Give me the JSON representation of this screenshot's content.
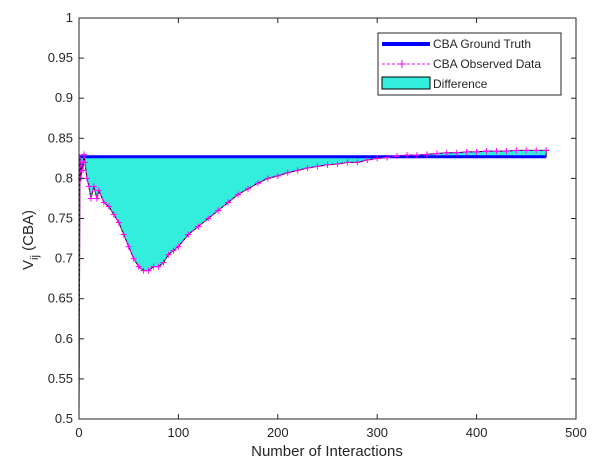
{
  "chart_data": {
    "type": "area",
    "xlabel": "Number of Interactions",
    "ylabel_main": "V",
    "ylabel_sub": "ij",
    "ylabel_suffix": " (CBA)",
    "xlim": [
      0,
      500
    ],
    "ylim": [
      0.5,
      1
    ],
    "x_ticks": [
      0,
      100,
      200,
      300,
      400,
      500
    ],
    "y_ticks": [
      0.5,
      0.55,
      0.6,
      0.65,
      0.7,
      0.75,
      0.8,
      0.85,
      0.9,
      0.95,
      1
    ],
    "x_tick_labels": [
      "0",
      "100",
      "200",
      "300",
      "400",
      "500"
    ],
    "y_tick_labels": [
      "0.5",
      "0.55",
      "0.6",
      "0.65",
      "0.7",
      "0.75",
      "0.8",
      "0.85",
      "0.9",
      "0.95",
      "1"
    ],
    "grid": false,
    "legend_position": "top-right",
    "series": [
      {
        "name": "CBA Ground Truth",
        "style": "solid-thick",
        "color": "#0000ff",
        "x": [
          0,
          470
        ],
        "y": [
          0.827,
          0.827
        ]
      },
      {
        "name": "CBA Observed Data",
        "style": "dashed-plus",
        "color": "#ff00ff",
        "x": [
          0,
          1,
          2,
          3,
          4,
          5,
          6,
          8,
          10,
          12,
          15,
          18,
          20,
          25,
          30,
          35,
          40,
          45,
          50,
          55,
          60,
          65,
          70,
          75,
          80,
          85,
          90,
          95,
          100,
          110,
          120,
          130,
          140,
          150,
          160,
          170,
          180,
          190,
          200,
          210,
          220,
          230,
          240,
          250,
          260,
          270,
          280,
          290,
          300,
          310,
          320,
          330,
          340,
          350,
          360,
          370,
          380,
          390,
          400,
          410,
          420,
          430,
          440,
          450,
          460,
          470
        ],
        "y": [
          0.5,
          0.83,
          0.8,
          0.82,
          0.81,
          0.83,
          0.82,
          0.8,
          0.79,
          0.775,
          0.79,
          0.775,
          0.785,
          0.77,
          0.765,
          0.755,
          0.745,
          0.73,
          0.715,
          0.7,
          0.69,
          0.685,
          0.685,
          0.69,
          0.69,
          0.695,
          0.705,
          0.71,
          0.715,
          0.73,
          0.74,
          0.75,
          0.76,
          0.77,
          0.78,
          0.787,
          0.794,
          0.8,
          0.803,
          0.807,
          0.81,
          0.813,
          0.815,
          0.817,
          0.818,
          0.82,
          0.82,
          0.823,
          0.825,
          0.826,
          0.828,
          0.829,
          0.829,
          0.83,
          0.831,
          0.832,
          0.832,
          0.833,
          0.833,
          0.834,
          0.834,
          0.834,
          0.835,
          0.835,
          0.835,
          0.835
        ]
      },
      {
        "name": "Difference",
        "style": "fill",
        "color": "#33eedd"
      }
    ]
  }
}
